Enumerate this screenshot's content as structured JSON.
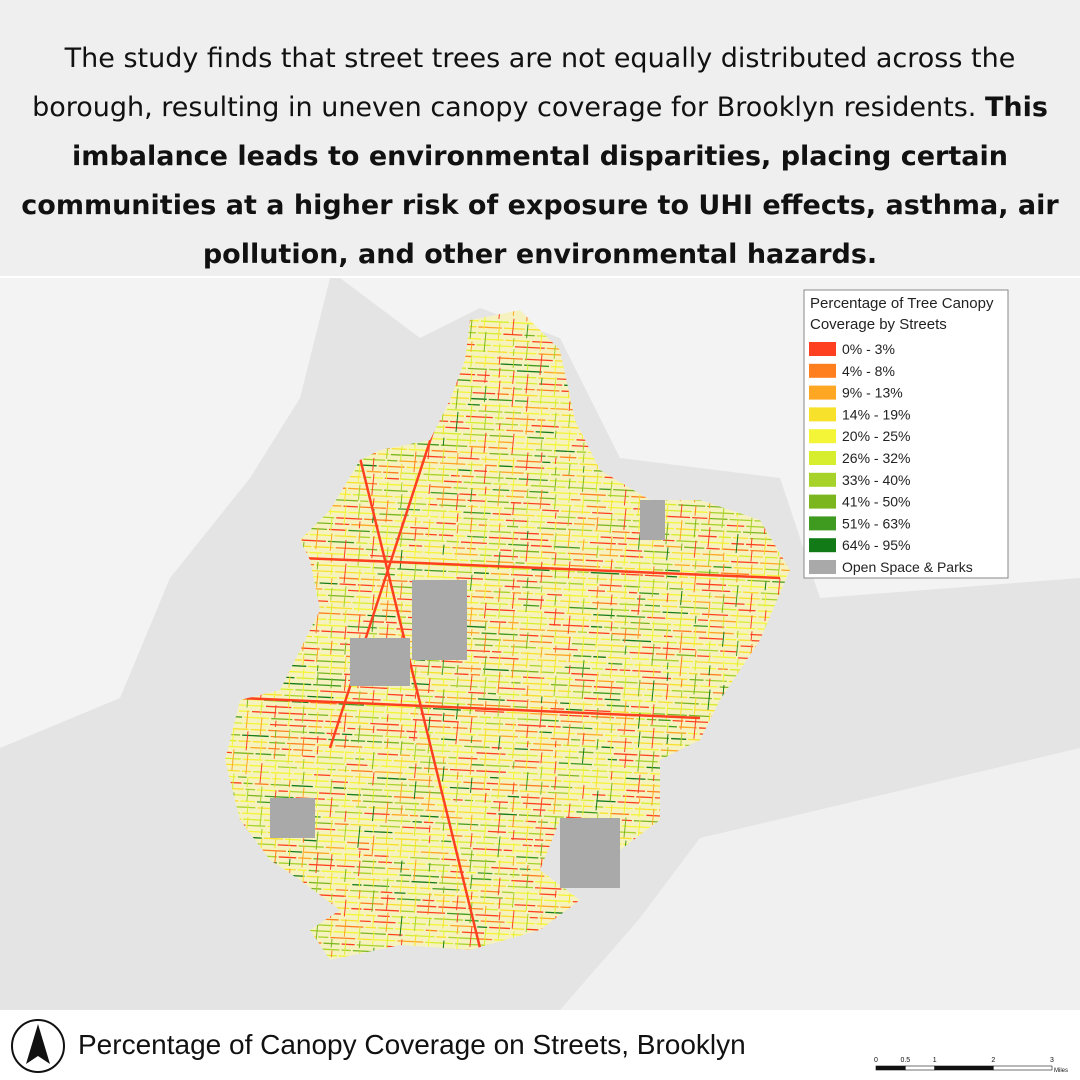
{
  "header": {
    "text": "The study finds that street trees are not equally distributed across the borough, resulting in uneven canopy coverage for Brooklyn residents.",
    "bold_text": "This imbalance leads to environmental disparities, placing certain communities at a higher risk of exposure to UHI effects, asthma, air pollution, and other environmental hazards."
  },
  "legend": {
    "title": [
      "Percentage of Tree Canopy",
      "Coverage by Streets"
    ],
    "items": [
      {
        "label": "0% - 3%",
        "color": "#ff4020"
      },
      {
        "label": "4% - 8%",
        "color": "#ff7f1e"
      },
      {
        "label": "9% - 13%",
        "color": "#ffa623"
      },
      {
        "label": "14% - 19%",
        "color": "#f7e12b"
      },
      {
        "label": "20% - 25%",
        "color": "#f3f536"
      },
      {
        "label": "26% - 32%",
        "color": "#d6ee2e"
      },
      {
        "label": "33% - 40%",
        "color": "#a6d22a"
      },
      {
        "label": "41% - 50%",
        "color": "#7cb61f"
      },
      {
        "label": "51% - 63%",
        "color": "#3f9a20"
      },
      {
        "label": "64% - 95%",
        "color": "#137a18"
      },
      {
        "label": "Open Space & Parks",
        "color": "#a9a9a9"
      }
    ]
  },
  "caption": "Percentage of Canopy Coverage on Streets, Brooklyn",
  "scale_bar": {
    "ticks": [
      0,
      0.5,
      1,
      2,
      3
    ],
    "unit": "Miles"
  }
}
